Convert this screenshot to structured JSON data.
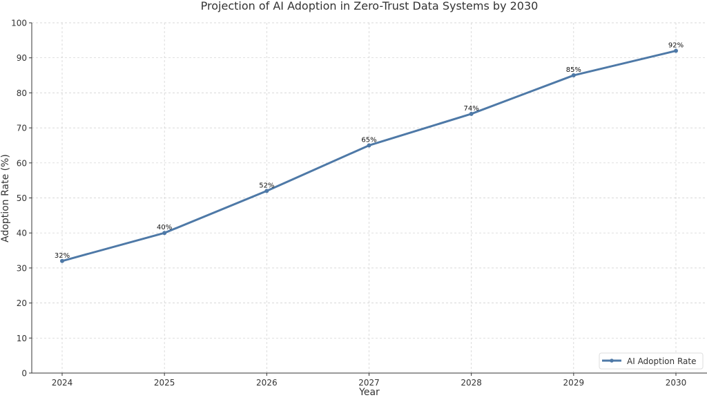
{
  "chart_data": {
    "type": "line",
    "title": "Projection of AI Adoption in Zero-Trust Data Systems by 2030",
    "xlabel": "Year",
    "ylabel": "Adoption Rate (%)",
    "x": [
      2024,
      2025,
      2026,
      2027,
      2028,
      2029,
      2030
    ],
    "series": [
      {
        "name": "AI Adoption Rate",
        "values": [
          32,
          40,
          52,
          65,
          74,
          85,
          92
        ],
        "color": "#4e79a7"
      }
    ],
    "data_labels": [
      "32%",
      "40%",
      "52%",
      "65%",
      "74%",
      "85%",
      "92%"
    ],
    "x_ticks": [
      "2024",
      "2025",
      "2026",
      "2027",
      "2028",
      "2029",
      "2030"
    ],
    "y_ticks": [
      "0",
      "10",
      "20",
      "30",
      "40",
      "50",
      "60",
      "70",
      "80",
      "90",
      "100"
    ],
    "ylim": [
      0,
      100
    ],
    "grid": true,
    "legend": "bottom-right"
  }
}
